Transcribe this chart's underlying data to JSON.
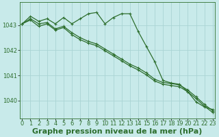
{
  "background_color": "#c8eaea",
  "grid_color": "#aad4d4",
  "line_color": "#2d6e2d",
  "x_ticks": [
    0,
    1,
    2,
    3,
    4,
    5,
    6,
    7,
    8,
    9,
    10,
    11,
    12,
    13,
    14,
    15,
    16,
    17,
    18,
    19,
    20,
    21,
    22,
    23
  ],
  "y_ticks": [
    1040,
    1041,
    1042,
    1043
  ],
  "ylim": [
    1039.3,
    1043.9
  ],
  "xlim": [
    -0.3,
    23.3
  ],
  "xlabel": "Graphe pression niveau de la mer (hPa)",
  "series": [
    [
      1043.05,
      1043.35,
      1043.15,
      1043.25,
      1043.05,
      1043.3,
      1043.05,
      1043.25,
      1043.45,
      1043.5,
      1043.05,
      1043.3,
      1043.45,
      1043.45,
      1042.75,
      1042.15,
      1041.55,
      1040.8,
      1040.7,
      1040.65,
      1040.35,
      1039.95,
      1039.75,
      1039.65
    ],
    [
      1043.05,
      1043.25,
      1043.05,
      1043.1,
      1042.85,
      1042.95,
      1042.7,
      1042.5,
      1042.35,
      1042.25,
      1042.05,
      1041.85,
      1041.65,
      1041.45,
      1041.3,
      1041.1,
      1040.85,
      1040.72,
      1040.68,
      1040.62,
      1040.42,
      1040.15,
      1039.85,
      1039.6
    ],
    [
      1043.05,
      1043.2,
      1042.95,
      1043.05,
      1042.8,
      1042.9,
      1042.62,
      1042.42,
      1042.28,
      1042.18,
      1041.98,
      1041.78,
      1041.58,
      1041.38,
      1041.22,
      1041.02,
      1040.78,
      1040.65,
      1040.6,
      1040.55,
      1040.35,
      1040.08,
      1039.78,
      1039.53
    ]
  ],
  "tick_fontsize": 6,
  "label_fontsize": 8,
  "marker_size": 3,
  "linewidth": 0.9
}
